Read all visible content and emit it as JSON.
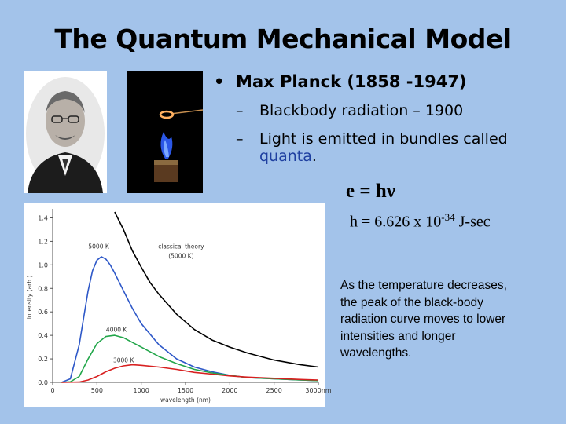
{
  "slide": {
    "title": "The Quantum Mechanical Model",
    "bullet": "Max Planck (1858 -1947)",
    "subbullets": {
      "first": "Blackbody radiation – 1900",
      "second_line1": "Light is emitted in bundles called",
      "second_quanta": "quanta",
      "second_period": "."
    },
    "equation": "e = hν",
    "h_prefix": "h = 6.626 x 10",
    "h_exponent": "-34",
    "h_suffix": " J-sec",
    "note": "As the temperature decreases, the peak of the black-body radiation curve moves to lower intensities and longer wavelengths."
  },
  "chart_data": {
    "type": "line",
    "xlabel": "wavelength (nm)",
    "ylabel": "intensity (arb.)",
    "xlim": [
      0,
      3000
    ],
    "ylim": [
      0,
      1.45
    ],
    "x_ticks": [
      "0",
      "500",
      "1000",
      "1500",
      "2000",
      "2500",
      "3000nm"
    ],
    "y_ticks": [
      "0.0",
      "0.2",
      "0.4",
      "0.6",
      "0.8",
      "1.0",
      "1.2",
      "1.4"
    ],
    "annotations": {
      "k5000": "5000 K",
      "classical_line1": "classical theory",
      "classical_line2": "(5000 K)",
      "k4000": "4000 K",
      "k3000": "3000 K"
    },
    "series_colors": {
      "classical": "#000000",
      "k5000": "#2e58c8",
      "k4000": "#22a64a",
      "k3000": "#d82020"
    },
    "series": [
      {
        "name": "5000 K",
        "x": [
          100,
          200,
          300,
          350,
          400,
          450,
          500,
          550,
          600,
          650,
          700,
          800,
          900,
          1000,
          1200,
          1400,
          1600,
          1800,
          2000,
          2200,
          2500,
          2800,
          3000
        ],
        "y": [
          0,
          0.03,
          0.32,
          0.55,
          0.78,
          0.95,
          1.04,
          1.07,
          1.05,
          1.0,
          0.93,
          0.78,
          0.63,
          0.5,
          0.32,
          0.2,
          0.13,
          0.09,
          0.06,
          0.04,
          0.03,
          0.02,
          0.015
        ]
      },
      {
        "name": "4000 K",
        "x": [
          100,
          200,
          300,
          400,
          500,
          600,
          700,
          800,
          900,
          1000,
          1200,
          1400,
          1600,
          1800,
          2000,
          2200,
          2500,
          2800,
          3000
        ],
        "y": [
          0,
          0.005,
          0.05,
          0.2,
          0.33,
          0.39,
          0.4,
          0.38,
          0.34,
          0.3,
          0.22,
          0.16,
          0.11,
          0.08,
          0.06,
          0.04,
          0.03,
          0.02,
          0.015
        ]
      },
      {
        "name": "3000 K",
        "x": [
          100,
          300,
          400,
          500,
          600,
          700,
          800,
          900,
          1000,
          1200,
          1400,
          1600,
          1800,
          2000,
          2200,
          2500,
          2800,
          3000
        ],
        "y": [
          0,
          0.003,
          0.02,
          0.05,
          0.09,
          0.12,
          0.14,
          0.15,
          0.145,
          0.13,
          0.11,
          0.085,
          0.07,
          0.055,
          0.045,
          0.035,
          0.025,
          0.02
        ]
      },
      {
        "name": "classical theory (5000 K)",
        "x": [
          700,
          800,
          900,
          1000,
          1100,
          1200,
          1400,
          1600,
          1800,
          2000,
          2200,
          2500,
          2800,
          3000
        ],
        "y": [
          1.45,
          1.3,
          1.12,
          0.98,
          0.85,
          0.75,
          0.58,
          0.45,
          0.36,
          0.3,
          0.25,
          0.19,
          0.15,
          0.13
        ]
      }
    ]
  }
}
